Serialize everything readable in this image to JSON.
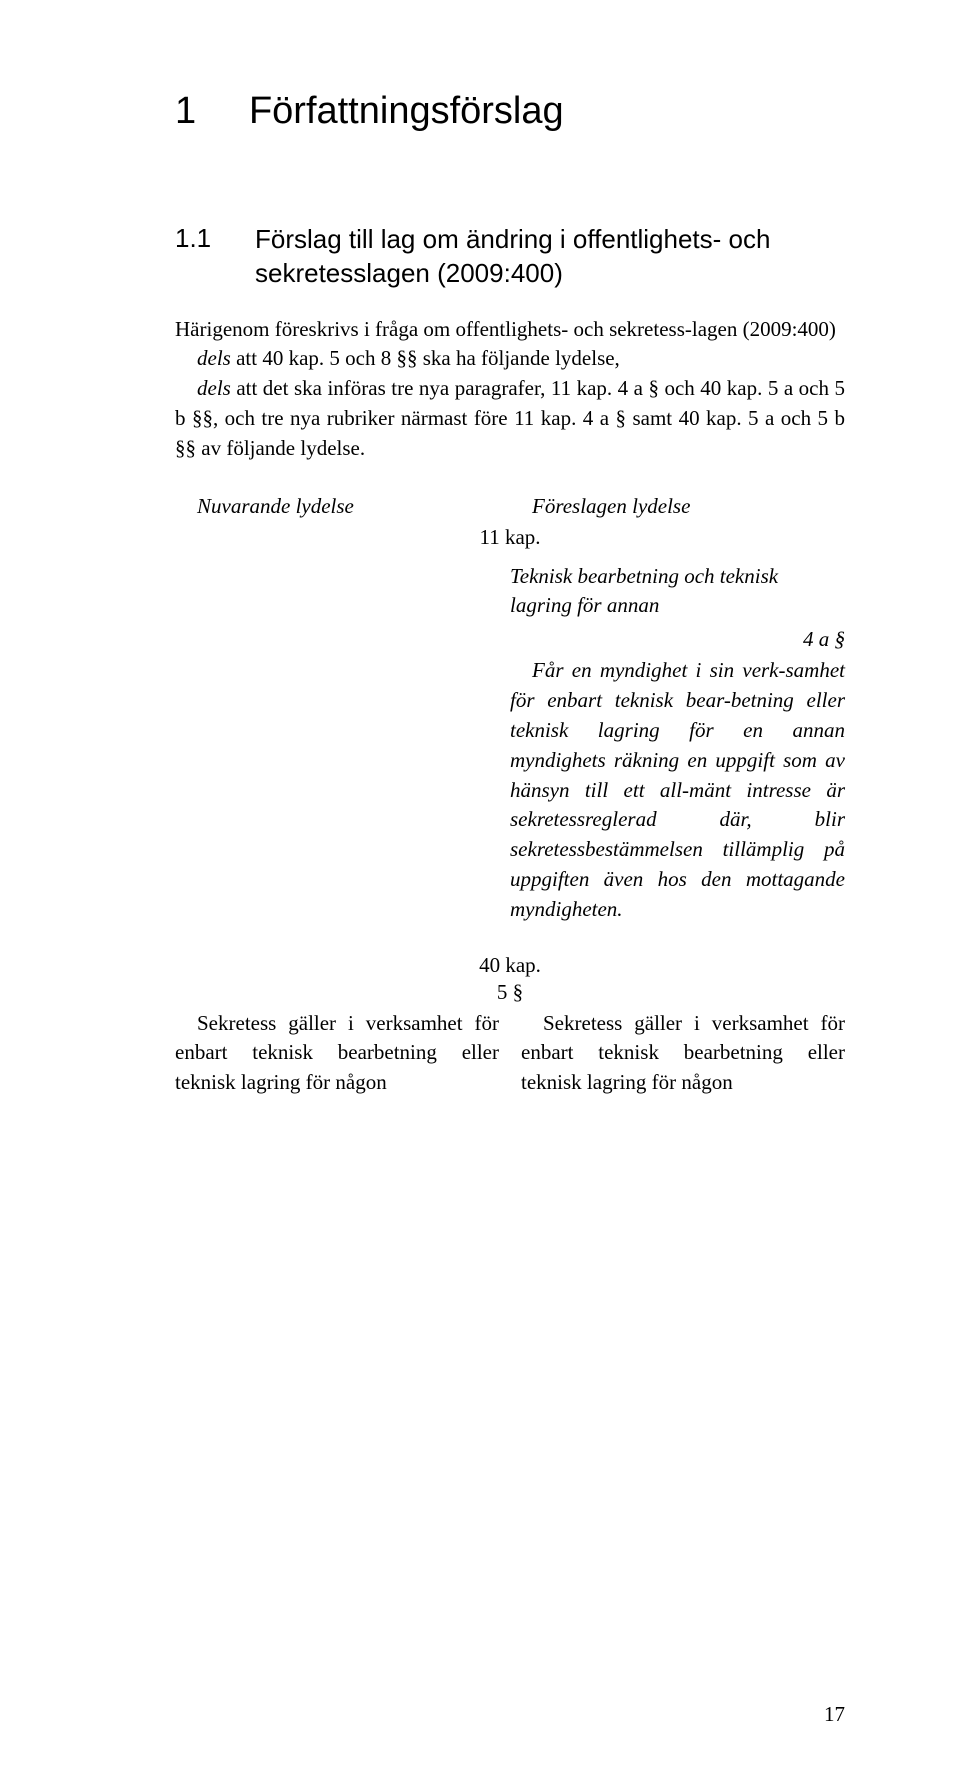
{
  "chapter": {
    "number": "1",
    "title": "Författningsförslag"
  },
  "section": {
    "number": "1.1",
    "title": "Förslag till lag om ändring i offentlighets- och sekretesslagen (2009:400)"
  },
  "intro": {
    "p1_prefix": "Härigenom föreskrivs i fråga om offentlighets- och sekretess-lagen (2009:400)",
    "p2_dels": "dels",
    "p2_rest": " att 40 kap. 5 och 8 §§ ska ha följande lydelse,",
    "p3_dels": "dels",
    "p3_rest": " att det ska införas tre nya paragrafer, 11 kap. 4 a § och 40 kap. 5 a och 5 b §§, och tre nya rubriker närmast före 11 kap. 4 a § samt 40 kap. 5 a och 5 b §§ av följande lydelse."
  },
  "lydelse_headers": {
    "left": "Nuvarande lydelse",
    "right": "Föreslagen lydelse"
  },
  "kap11": {
    "label": "11 kap.",
    "rubric": "Teknisk bearbetning och teknisk lagring för annan",
    "para_num": "4 a §",
    "para_body": "Får en myndighet i sin verk-samhet för enbart teknisk bear-betning eller teknisk lagring för en annan myndighets räkning en uppgift som av hänsyn till ett all-mänt intresse är sekretessreglerad där, blir sekretessbestämmelsen tillämplig på uppgiften även hos den mottagande myndigheten."
  },
  "kap40": {
    "label": "40 kap.",
    "para_num": "5 §",
    "left_body": "Sekretess gäller i verksamhet för enbart teknisk bearbetning eller teknisk lagring för någon",
    "right_body": "Sekretess gäller i verksamhet för enbart teknisk bearbetning eller teknisk lagring för någon"
  },
  "page_number": "17",
  "colors": {
    "text": "#000000",
    "background": "#ffffff"
  },
  "fonts": {
    "heading_family": "Arial",
    "body_family": "Georgia",
    "chapter_size_pt": 29,
    "section_size_pt": 20,
    "body_size_pt": 16
  }
}
